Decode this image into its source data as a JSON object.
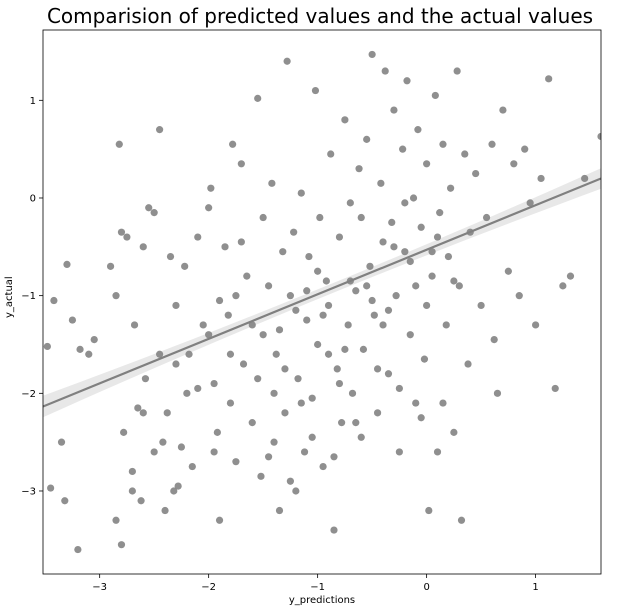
{
  "chart_data": {
    "type": "scatter",
    "title": "Comparision of predicted values and the actual values",
    "xlabel": "y_predictions",
    "ylabel": "y_actual",
    "xlim": [
      -3.52,
      1.6
    ],
    "ylim": [
      -3.85,
      1.72
    ],
    "x_ticks": [
      -3,
      -2,
      -1,
      0,
      1
    ],
    "y_ticks": [
      -3,
      -2,
      -1,
      0,
      1
    ],
    "grid": false,
    "point_color": "#808080",
    "line_color": "#808080",
    "band_color": "#e8e8e8",
    "regression": {
      "slope": 0.456,
      "intercept": -0.53,
      "x_range": [
        -3.52,
        1.6
      ]
    },
    "points": [
      [
        -3.42,
        -1.05
      ],
      [
        -3.3,
        -0.68
      ],
      [
        -3.25,
        -1.25
      ],
      [
        -3.35,
        -2.5
      ],
      [
        -3.32,
        -3.1
      ],
      [
        -3.45,
        -2.97
      ],
      [
        -3.1,
        -1.6
      ],
      [
        -3.18,
        -1.55
      ],
      [
        -3.2,
        -3.6
      ],
      [
        -3.05,
        -1.45
      ],
      [
        -3.48,
        -1.52
      ],
      [
        -2.9,
        -0.7
      ],
      [
        -2.85,
        -1.0
      ],
      [
        -2.82,
        0.55
      ],
      [
        -2.8,
        -0.35
      ],
      [
        -2.75,
        -0.4
      ],
      [
        -2.7,
        -2.8
      ],
      [
        -2.65,
        -2.15
      ],
      [
        -2.6,
        -2.2
      ],
      [
        -2.55,
        -0.1
      ],
      [
        -2.5,
        -0.15
      ],
      [
        -2.45,
        0.7
      ],
      [
        -2.42,
        -2.5
      ],
      [
        -2.4,
        -3.2
      ],
      [
        -2.35,
        -0.6
      ],
      [
        -2.3,
        -1.1
      ],
      [
        -2.28,
        -2.95
      ],
      [
        -2.22,
        -0.7
      ],
      [
        -2.18,
        -1.6
      ],
      [
        -2.85,
        -3.3
      ],
      [
        -2.8,
        -3.55
      ],
      [
        -2.7,
        -3.0
      ],
      [
        -2.62,
        -3.1
      ],
      [
        -2.78,
        -2.4
      ],
      [
        -2.68,
        -1.3
      ],
      [
        -2.6,
        -0.5
      ],
      [
        -2.58,
        -1.85
      ],
      [
        -2.5,
        -2.6
      ],
      [
        -2.45,
        -1.6
      ],
      [
        -2.38,
        -2.2
      ],
      [
        -2.32,
        -3.0
      ],
      [
        -2.25,
        -2.55
      ],
      [
        -2.2,
        -2.0
      ],
      [
        -2.15,
        -2.75
      ],
      [
        -2.1,
        -0.4
      ],
      [
        -2.05,
        -1.3
      ],
      [
        -2.0,
        -0.1
      ],
      [
        -1.98,
        0.1
      ],
      [
        -1.95,
        -1.9
      ],
      [
        -1.92,
        -2.4
      ],
      [
        -1.9,
        -3.3
      ],
      [
        -1.85,
        -0.5
      ],
      [
        -1.82,
        -1.2
      ],
      [
        -1.8,
        -2.1
      ],
      [
        -1.78,
        0.55
      ],
      [
        -1.75,
        -2.7
      ],
      [
        -1.7,
        0.35
      ],
      [
        -1.68,
        -1.7
      ],
      [
        -1.65,
        -0.8
      ],
      [
        -1.6,
        -2.3
      ],
      [
        -1.55,
        1.02
      ],
      [
        -1.52,
        -2.85
      ],
      [
        -1.5,
        -1.4
      ],
      [
        -1.45,
        -0.9
      ],
      [
        -1.42,
        0.15
      ],
      [
        -1.4,
        -2.5
      ],
      [
        -1.38,
        -1.6
      ],
      [
        -1.35,
        -3.2
      ],
      [
        -1.32,
        -0.55
      ],
      [
        -1.3,
        -2.2
      ],
      [
        -1.28,
        1.4
      ],
      [
        -1.25,
        -1.0
      ],
      [
        -1.22,
        -0.35
      ],
      [
        -1.2,
        -3.0
      ],
      [
        -1.18,
        -1.85
      ],
      [
        -1.15,
        0.05
      ],
      [
        -1.12,
        -2.6
      ],
      [
        -1.1,
        -1.25
      ],
      [
        -1.08,
        -0.6
      ],
      [
        -1.05,
        -2.05
      ],
      [
        -1.02,
        1.1
      ],
      [
        -1.0,
        -1.5
      ],
      [
        -0.98,
        -0.2
      ],
      [
        -0.95,
        -2.75
      ],
      [
        -0.92,
        -0.85
      ],
      [
        -0.9,
        -1.1
      ],
      [
        -0.88,
        0.45
      ],
      [
        -0.85,
        -3.4
      ],
      [
        -0.82,
        -1.75
      ],
      [
        -0.8,
        -0.4
      ],
      [
        -0.78,
        -2.3
      ],
      [
        -0.75,
        0.8
      ],
      [
        -0.72,
        -1.3
      ],
      [
        -0.7,
        -0.05
      ],
      [
        -0.68,
        -2.0
      ],
      [
        -0.65,
        -0.95
      ],
      [
        -0.62,
        0.3
      ],
      [
        -0.6,
        -2.45
      ],
      [
        -0.58,
        -1.55
      ],
      [
        -0.55,
        0.6
      ],
      [
        -0.52,
        -0.7
      ],
      [
        -0.5,
        1.47
      ],
      [
        -0.48,
        -1.2
      ],
      [
        -0.45,
        -2.2
      ],
      [
        -0.42,
        0.15
      ],
      [
        -0.4,
        -0.45
      ],
      [
        -0.38,
        1.3
      ],
      [
        -0.35,
        -1.8
      ],
      [
        -0.32,
        -0.25
      ],
      [
        -0.3,
        0.9
      ],
      [
        -0.28,
        -1.0
      ],
      [
        -0.25,
        -2.6
      ],
      [
        -0.22,
        0.5
      ],
      [
        -0.2,
        -0.55
      ],
      [
        -0.18,
        1.2
      ],
      [
        -0.15,
        -1.4
      ],
      [
        -0.12,
        0.0
      ],
      [
        -0.1,
        -2.1
      ],
      [
        -0.08,
        0.7
      ],
      [
        -0.05,
        -0.3
      ],
      [
        -0.02,
        -1.65
      ],
      [
        0.0,
        0.35
      ],
      [
        0.02,
        -3.2
      ],
      [
        0.05,
        -0.8
      ],
      [
        0.08,
        1.05
      ],
      [
        0.1,
        -2.6
      ],
      [
        0.12,
        -0.15
      ],
      [
        0.15,
        0.55
      ],
      [
        0.18,
        -1.3
      ],
      [
        0.2,
        -0.6
      ],
      [
        0.22,
        0.1
      ],
      [
        0.25,
        -2.4
      ],
      [
        0.28,
        1.3
      ],
      [
        0.3,
        -0.9
      ],
      [
        0.32,
        -3.3
      ],
      [
        0.35,
        0.45
      ],
      [
        0.38,
        -1.7
      ],
      [
        0.4,
        -0.35
      ],
      [
        0.45,
        0.25
      ],
      [
        0.5,
        -1.1
      ],
      [
        0.55,
        -0.2
      ],
      [
        0.6,
        0.55
      ],
      [
        0.62,
        -1.45
      ],
      [
        0.65,
        -2.0
      ],
      [
        0.7,
        0.9
      ],
      [
        0.75,
        -0.75
      ],
      [
        0.8,
        0.35
      ],
      [
        0.85,
        -1.0
      ],
      [
        0.9,
        0.5
      ],
      [
        0.95,
        -0.05
      ],
      [
        1.0,
        -1.3
      ],
      [
        1.05,
        0.2
      ],
      [
        1.12,
        1.22
      ],
      [
        1.18,
        -1.95
      ],
      [
        1.25,
        -0.9
      ],
      [
        1.32,
        -0.8
      ],
      [
        1.45,
        0.2
      ],
      [
        1.6,
        0.63
      ],
      [
        -1.9,
        -1.05
      ],
      [
        -1.7,
        -0.45
      ],
      [
        -1.5,
        -0.2
      ],
      [
        -1.3,
        -1.75
      ],
      [
        -1.1,
        -0.95
      ],
      [
        -0.9,
        -1.6
      ],
      [
        -0.7,
        -0.85
      ],
      [
        -0.5,
        -1.05
      ],
      [
        -0.3,
        -0.5
      ],
      [
        -0.1,
        -0.9
      ],
      [
        0.1,
        -0.4
      ],
      [
        -1.6,
        -1.3
      ],
      [
        -1.4,
        -2.0
      ],
      [
        -1.2,
        -1.15
      ],
      [
        -1.0,
        -0.75
      ],
      [
        -0.8,
        -1.9
      ],
      [
        -0.6,
        -0.2
      ],
      [
        -0.4,
        -1.3
      ],
      [
        -0.2,
        -0.05
      ],
      [
        0.0,
        -1.1
      ],
      [
        -2.0,
        -1.4
      ],
      [
        -1.8,
        -1.6
      ],
      [
        -2.3,
        -1.7
      ],
      [
        -2.1,
        -1.95
      ],
      [
        -1.95,
        -2.6
      ],
      [
        -1.75,
        -1.0
      ],
      [
        -1.55,
        -1.85
      ],
      [
        -1.35,
        -1.35
      ],
      [
        -1.15,
        -2.1
      ],
      [
        -0.95,
        -1.2
      ],
      [
        -0.75,
        -1.55
      ],
      [
        -0.55,
        -0.9
      ],
      [
        -0.35,
        -1.15
      ],
      [
        -0.15,
        -0.65
      ],
      [
        0.05,
        -0.55
      ],
      [
        0.25,
        -0.85
      ],
      [
        -1.45,
        -2.65
      ],
      [
        -1.25,
        -2.9
      ],
      [
        -1.05,
        -2.45
      ],
      [
        -0.85,
        -2.65
      ],
      [
        -0.65,
        -2.3
      ],
      [
        -0.45,
        -1.75
      ],
      [
        -0.25,
        -1.95
      ],
      [
        -0.05,
        -2.25
      ],
      [
        0.15,
        -2.1
      ]
    ]
  }
}
